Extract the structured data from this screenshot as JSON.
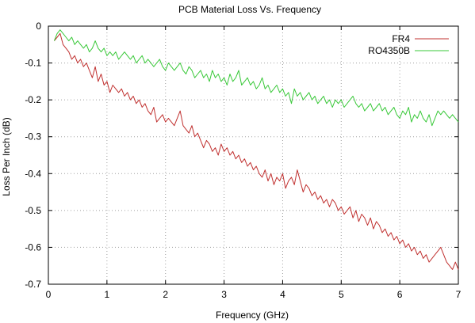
{
  "chart_data": {
    "type": "line",
    "title": "PCB Material Loss Vs. Frequency",
    "xlabel": "Frequency (GHz)",
    "ylabel": "Loss Per Inch (dB)",
    "xlim": [
      0,
      7
    ],
    "ylim": [
      -0.7,
      0
    ],
    "xticks": [
      "0",
      "1",
      "2",
      "3",
      "4",
      "5",
      "6",
      "7"
    ],
    "yticks": [
      "0",
      "-0.1",
      "-0.2",
      "-0.3",
      "-0.4",
      "-0.5",
      "-0.6",
      "-0.7"
    ],
    "grid": true,
    "legend_position": "top-right",
    "series": [
      {
        "name": "FR4",
        "color": "#c0302f",
        "x": [
          0.1,
          0.15,
          0.2,
          0.25,
          0.3,
          0.35,
          0.4,
          0.45,
          0.5,
          0.55,
          0.6,
          0.65,
          0.7,
          0.75,
          0.8,
          0.85,
          0.9,
          0.95,
          1.0,
          1.05,
          1.1,
          1.15,
          1.2,
          1.25,
          1.3,
          1.35,
          1.4,
          1.45,
          1.5,
          1.55,
          1.6,
          1.65,
          1.7,
          1.75,
          1.8,
          1.85,
          1.9,
          1.95,
          2.0,
          2.05,
          2.1,
          2.15,
          2.2,
          2.25,
          2.3,
          2.35,
          2.4,
          2.45,
          2.5,
          2.55,
          2.6,
          2.65,
          2.7,
          2.75,
          2.8,
          2.85,
          2.9,
          2.95,
          3.0,
          3.05,
          3.1,
          3.15,
          3.2,
          3.25,
          3.3,
          3.35,
          3.4,
          3.45,
          3.5,
          3.55,
          3.6,
          3.65,
          3.7,
          3.75,
          3.8,
          3.85,
          3.9,
          3.95,
          4.0,
          4.05,
          4.1,
          4.15,
          4.2,
          4.25,
          4.3,
          4.35,
          4.4,
          4.45,
          4.5,
          4.55,
          4.6,
          4.65,
          4.7,
          4.75,
          4.8,
          4.85,
          4.9,
          4.95,
          5.0,
          5.05,
          5.1,
          5.15,
          5.2,
          5.25,
          5.3,
          5.35,
          5.4,
          5.45,
          5.5,
          5.55,
          5.6,
          5.65,
          5.7,
          5.75,
          5.8,
          5.85,
          5.9,
          5.95,
          6.0,
          6.05,
          6.1,
          6.15,
          6.2,
          6.25,
          6.3,
          6.35,
          6.4,
          6.45,
          6.5,
          6.55,
          6.6,
          6.65,
          6.7,
          6.75,
          6.8,
          6.85,
          6.9,
          6.95,
          7.0
        ],
        "y": [
          -0.04,
          -0.03,
          -0.02,
          -0.05,
          -0.06,
          -0.07,
          -0.09,
          -0.08,
          -0.1,
          -0.09,
          -0.11,
          -0.1,
          -0.12,
          -0.14,
          -0.11,
          -0.15,
          -0.13,
          -0.16,
          -0.15,
          -0.18,
          -0.16,
          -0.17,
          -0.18,
          -0.17,
          -0.19,
          -0.18,
          -0.2,
          -0.19,
          -0.21,
          -0.2,
          -0.22,
          -0.21,
          -0.23,
          -0.24,
          -0.22,
          -0.26,
          -0.25,
          -0.24,
          -0.26,
          -0.25,
          -0.26,
          -0.27,
          -0.25,
          -0.23,
          -0.27,
          -0.28,
          -0.29,
          -0.27,
          -0.3,
          -0.29,
          -0.31,
          -0.33,
          -0.31,
          -0.32,
          -0.34,
          -0.33,
          -0.35,
          -0.32,
          -0.34,
          -0.33,
          -0.35,
          -0.34,
          -0.36,
          -0.35,
          -0.37,
          -0.36,
          -0.38,
          -0.37,
          -0.39,
          -0.38,
          -0.4,
          -0.41,
          -0.39,
          -0.42,
          -0.4,
          -0.43,
          -0.41,
          -0.42,
          -0.4,
          -0.44,
          -0.42,
          -0.41,
          -0.43,
          -0.39,
          -0.42,
          -0.45,
          -0.43,
          -0.44,
          -0.46,
          -0.45,
          -0.47,
          -0.46,
          -0.48,
          -0.47,
          -0.49,
          -0.47,
          -0.48,
          -0.5,
          -0.49,
          -0.51,
          -0.5,
          -0.49,
          -0.52,
          -0.5,
          -0.53,
          -0.51,
          -0.52,
          -0.54,
          -0.52,
          -0.55,
          -0.53,
          -0.54,
          -0.56,
          -0.55,
          -0.57,
          -0.56,
          -0.58,
          -0.57,
          -0.59,
          -0.58,
          -0.6,
          -0.59,
          -0.61,
          -0.6,
          -0.62,
          -0.61,
          -0.63,
          -0.62,
          -0.64,
          -0.63,
          -0.62,
          -0.61,
          -0.6,
          -0.62,
          -0.64,
          -0.65,
          -0.66,
          -0.64,
          -0.66
        ]
      },
      {
        "name": "RO4350B",
        "color": "#38c838",
        "x": [
          0.1,
          0.15,
          0.2,
          0.25,
          0.3,
          0.35,
          0.4,
          0.45,
          0.5,
          0.55,
          0.6,
          0.65,
          0.7,
          0.75,
          0.8,
          0.85,
          0.9,
          0.95,
          1.0,
          1.05,
          1.1,
          1.15,
          1.2,
          1.25,
          1.3,
          1.35,
          1.4,
          1.45,
          1.5,
          1.55,
          1.6,
          1.65,
          1.7,
          1.75,
          1.8,
          1.85,
          1.9,
          1.95,
          2.0,
          2.05,
          2.1,
          2.15,
          2.2,
          2.25,
          2.3,
          2.35,
          2.4,
          2.45,
          2.5,
          2.55,
          2.6,
          2.65,
          2.7,
          2.75,
          2.8,
          2.85,
          2.9,
          2.95,
          3.0,
          3.05,
          3.1,
          3.15,
          3.2,
          3.25,
          3.3,
          3.35,
          3.4,
          3.45,
          3.5,
          3.55,
          3.6,
          3.65,
          3.7,
          3.75,
          3.8,
          3.85,
          3.9,
          3.95,
          4.0,
          4.05,
          4.1,
          4.15,
          4.2,
          4.25,
          4.3,
          4.35,
          4.4,
          4.45,
          4.5,
          4.55,
          4.6,
          4.65,
          4.7,
          4.75,
          4.8,
          4.85,
          4.9,
          4.95,
          5.0,
          5.05,
          5.1,
          5.15,
          5.2,
          5.25,
          5.3,
          5.35,
          5.4,
          5.45,
          5.5,
          5.55,
          5.6,
          5.65,
          5.7,
          5.75,
          5.8,
          5.85,
          5.9,
          5.95,
          6.0,
          6.05,
          6.1,
          6.15,
          6.2,
          6.25,
          6.3,
          6.35,
          6.4,
          6.45,
          6.5,
          6.55,
          6.6,
          6.65,
          6.7,
          6.75,
          6.8,
          6.85,
          6.9,
          6.95,
          7.0
        ],
        "y": [
          -0.04,
          -0.02,
          -0.01,
          -0.02,
          -0.03,
          -0.04,
          -0.03,
          -0.05,
          -0.04,
          -0.05,
          -0.06,
          -0.05,
          -0.07,
          -0.06,
          -0.04,
          -0.06,
          -0.07,
          -0.06,
          -0.08,
          -0.07,
          -0.08,
          -0.07,
          -0.09,
          -0.08,
          -0.07,
          -0.08,
          -0.09,
          -0.08,
          -0.1,
          -0.09,
          -0.08,
          -0.1,
          -0.09,
          -0.1,
          -0.11,
          -0.1,
          -0.09,
          -0.11,
          -0.12,
          -0.1,
          -0.11,
          -0.12,
          -0.11,
          -0.1,
          -0.12,
          -0.13,
          -0.11,
          -0.12,
          -0.14,
          -0.13,
          -0.12,
          -0.14,
          -0.13,
          -0.15,
          -0.12,
          -0.14,
          -0.13,
          -0.15,
          -0.14,
          -0.16,
          -0.13,
          -0.15,
          -0.14,
          -0.12,
          -0.16,
          -0.15,
          -0.14,
          -0.16,
          -0.15,
          -0.17,
          -0.16,
          -0.14,
          -0.17,
          -0.16,
          -0.18,
          -0.17,
          -0.16,
          -0.18,
          -0.17,
          -0.19,
          -0.18,
          -0.21,
          -0.17,
          -0.19,
          -0.18,
          -0.2,
          -0.19,
          -0.18,
          -0.2,
          -0.19,
          -0.21,
          -0.2,
          -0.19,
          -0.21,
          -0.2,
          -0.22,
          -0.2,
          -0.21,
          -0.2,
          -0.22,
          -0.21,
          -0.2,
          -0.19,
          -0.21,
          -0.22,
          -0.21,
          -0.23,
          -0.22,
          -0.21,
          -0.23,
          -0.22,
          -0.21,
          -0.23,
          -0.22,
          -0.24,
          -0.23,
          -0.22,
          -0.24,
          -0.25,
          -0.23,
          -0.24,
          -0.22,
          -0.26,
          -0.24,
          -0.25,
          -0.23,
          -0.25,
          -0.26,
          -0.24,
          -0.27,
          -0.25,
          -0.23,
          -0.24,
          -0.23,
          -0.24,
          -0.25,
          -0.24,
          -0.25,
          -0.26
        ]
      }
    ]
  }
}
